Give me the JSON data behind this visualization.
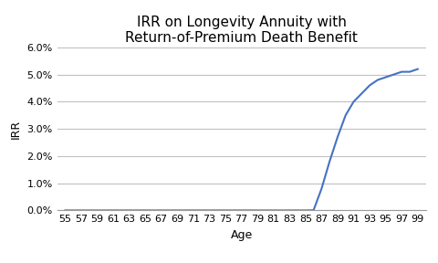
{
  "title": "IRR on Longevity Annuity with\nReturn-of-Premium Death Benefit",
  "xlabel": "Age",
  "ylabel": "IRR",
  "ages": [
    55,
    56,
    57,
    58,
    59,
    60,
    61,
    62,
    63,
    64,
    65,
    66,
    67,
    68,
    69,
    70,
    71,
    72,
    73,
    74,
    75,
    76,
    77,
    78,
    79,
    80,
    81,
    82,
    83,
    84,
    85,
    86,
    87,
    88,
    89,
    90,
    91,
    92,
    93,
    94,
    95,
    96,
    97,
    98,
    99
  ],
  "irr": [
    0.0,
    0.0,
    0.0,
    0.0,
    0.0,
    0.0,
    0.0,
    0.0,
    0.0,
    0.0,
    0.0,
    0.0,
    0.0,
    0.0,
    0.0,
    0.0,
    0.0,
    0.0,
    0.0,
    0.0,
    0.0,
    0.0,
    0.0,
    0.0,
    0.0,
    0.0,
    0.0,
    0.0,
    0.0,
    0.0,
    0.0,
    5e-05,
    0.008,
    0.018,
    0.027,
    0.035,
    0.04,
    0.043,
    0.046,
    0.048,
    0.049,
    0.05,
    0.051,
    0.051,
    0.052
  ],
  "line_color": "#4472C4",
  "line_width": 1.5,
  "xtick_labels": [
    "55",
    "57",
    "59",
    "61",
    "63",
    "65",
    "67",
    "69",
    "71",
    "73",
    "75",
    "77",
    "79",
    "81",
    "83",
    "85",
    "87",
    "89",
    "91",
    "93",
    "95",
    "97",
    "99"
  ],
  "xtick_values": [
    55,
    57,
    59,
    61,
    63,
    65,
    67,
    69,
    71,
    73,
    75,
    77,
    79,
    81,
    83,
    85,
    87,
    89,
    91,
    93,
    95,
    97,
    99
  ],
  "ylim": [
    0.0,
    0.06
  ],
  "yticks": [
    0.0,
    0.01,
    0.02,
    0.03,
    0.04,
    0.05,
    0.06
  ],
  "ytick_labels": [
    "0.0%",
    "1.0%",
    "2.0%",
    "3.0%",
    "4.0%",
    "5.0%",
    "6.0%"
  ],
  "grid_color": "#C0C0C0",
  "background_color": "#FFFFFF",
  "title_fontsize": 11,
  "axis_label_fontsize": 9,
  "tick_fontsize": 8
}
